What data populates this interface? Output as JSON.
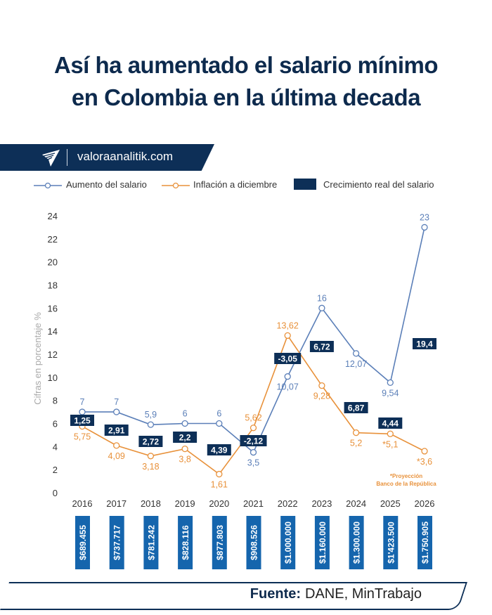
{
  "title_line1": "Así ha aumentado el salario mínimo",
  "title_line2": "en Colombia en la última decada",
  "brand": {
    "text": "valoraanalitik.com",
    "icon": "paper-plane-logo-icon"
  },
  "colors": {
    "salary": "#5b7fb8",
    "inflation": "#e8913a",
    "real": "#0d2f57",
    "wage_box": "#1565ad"
  },
  "chart_data": {
    "type": "line",
    "ylabel": "Cifras en porcentaje %",
    "ylim": [
      0,
      24
    ],
    "yticks": [
      0,
      2,
      4,
      6,
      8,
      10,
      12,
      14,
      16,
      18,
      20,
      22,
      24
    ],
    "categories": [
      "2016",
      "2017",
      "2018",
      "2019",
      "2020",
      "2021",
      "2022",
      "2023",
      "2024",
      "2025",
      "2026"
    ],
    "series": [
      {
        "name": "Aumento del salario",
        "values": [
          7,
          7,
          5.9,
          6,
          6,
          3.5,
          10.07,
          16,
          12.07,
          9.54,
          23
        ],
        "labels": [
          "7",
          "7",
          "5,9",
          "6",
          "6",
          "3,5",
          "10,07",
          "16",
          "12,07",
          "9,54",
          "23"
        ]
      },
      {
        "name": "Inflación a diciembre",
        "values": [
          5.75,
          4.09,
          3.18,
          3.8,
          1.61,
          5.62,
          13.62,
          9.28,
          5.2,
          5.1,
          3.6
        ],
        "labels": [
          "5,75",
          "4,09",
          "3,18",
          "3,8",
          "1,61",
          "5,62",
          "13,62",
          "9,28",
          "5,2",
          "*5,1",
          "*3,6"
        ]
      },
      {
        "name": "Crecimiento real del salario",
        "values": [
          1.25,
          2.91,
          2.72,
          2.2,
          4.39,
          -2.12,
          -3.05,
          6.72,
          6.87,
          4.44,
          19.4
        ],
        "labels": [
          "1,25",
          "2,91",
          "2,72",
          "2,2",
          "4,39",
          "-2,12",
          "-3,05",
          "6,72",
          "6,87",
          "4,44",
          "19,4"
        ]
      }
    ],
    "annotation": [
      "*Proyección",
      "Banco de la República"
    ],
    "grid": false,
    "legend": "top"
  },
  "minimum_wages": [
    "$689.455",
    "$737.717",
    "$781.242",
    "$828.116",
    "$877.803",
    "$908.526",
    "$1.000.000",
    "$1.160.000",
    "$1.300.000",
    "$1'423.500",
    "$1.750.905"
  ],
  "footer": {
    "label": "Fuente:",
    "source": "DANE, MinTrabajo"
  }
}
